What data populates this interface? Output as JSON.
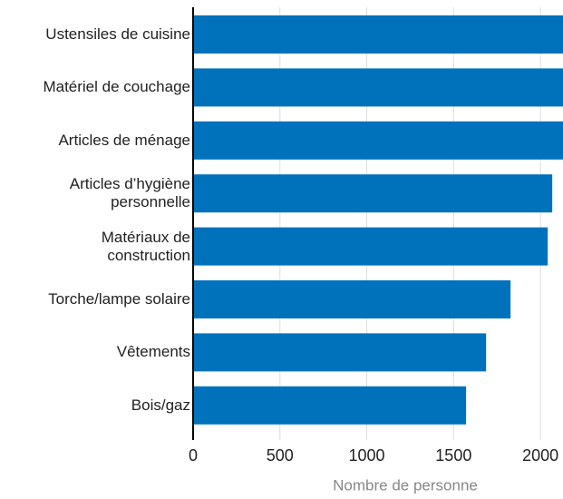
{
  "chart_data": {
    "type": "barh",
    "categories": [
      "Ustensiles de cuisine",
      "Matériel de couchage",
      "Articles de ménage",
      "Articles d’hygiène\npersonnelle",
      "Matériaux de\nconstruction",
      "Torche/lampe solaire",
      "Vêtements",
      "Bois/gaz"
    ],
    "values": [
      2130,
      2130,
      2130,
      2068,
      2042,
      1828,
      1687,
      1572
    ],
    "color": "#0072bc",
    "xlabel": "Nombre de personne",
    "xlim": [
      0,
      2130
    ],
    "xticks": [
      0,
      500,
      1000,
      1500,
      2000
    ],
    "grid": true
  }
}
